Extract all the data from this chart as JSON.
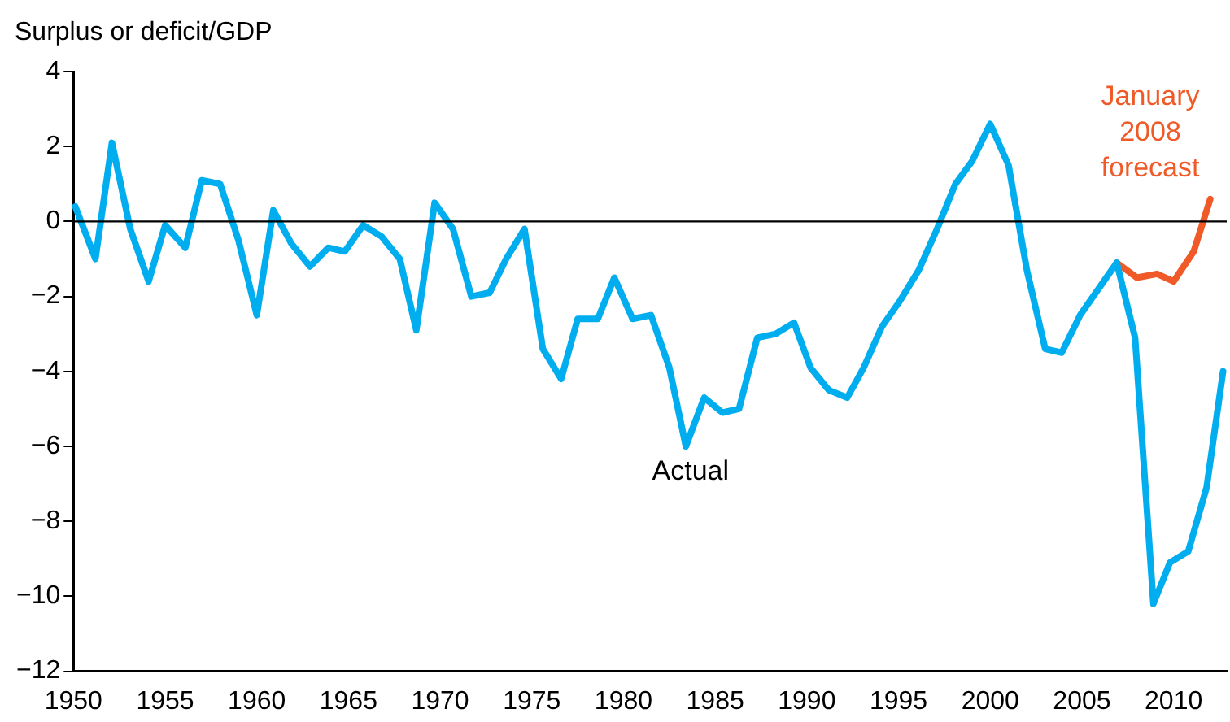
{
  "chart_data": {
    "type": "line",
    "ylabel": "Surplus or deficit/GDP",
    "xlim": [
      1950,
      2012.9
    ],
    "xticks": [
      1950,
      1955,
      1960,
      1965,
      1970,
      1975,
      1980,
      1985,
      1990,
      1995,
      2000,
      2005,
      2010
    ],
    "ylim": [
      -12,
      4
    ],
    "yticks": [
      -12,
      -10,
      -8,
      -6,
      -4,
      -2,
      0,
      2,
      4
    ],
    "grid": false,
    "legend": false,
    "marker": "none",
    "line_style": "solid",
    "ref_lines": [
      {
        "axis": "y",
        "value": 0,
        "color": "#000000"
      }
    ],
    "series": [
      {
        "name": "Actual",
        "color": "#00adef",
        "x": [
          1950.1,
          1951.2,
          1952.1,
          1953.1,
          1954.1,
          1955.0,
          1956.1,
          1957.0,
          1958.0,
          1959.0,
          1960.0,
          1960.9,
          1961.9,
          1962.9,
          1963.9,
          1964.8,
          1965.8,
          1966.8,
          1967.8,
          1968.7,
          1969.7,
          1970.7,
          1971.7,
          1972.7,
          1973.6,
          1974.6,
          1975.6,
          1976.6,
          1977.5,
          1978.6,
          1979.5,
          1980.5,
          1981.5,
          1982.5,
          1983.4,
          1984.4,
          1985.4,
          1986.3,
          1987.3,
          1988.3,
          1989.3,
          1990.2,
          1991.2,
          1992.2,
          1993.1,
          1994.1,
          1995.1,
          1996.1,
          1997.1,
          1998.1,
          1999.0,
          2000.0,
          2001.0,
          2002.0,
          2003.0,
          2003.9,
          2004.9,
          2005.9,
          2006.9,
          2007.9,
          2008.9,
          2009.8,
          2010.8,
          2011.8,
          2012.7
        ],
        "values": [
          0.4,
          -1.0,
          2.1,
          -0.2,
          -1.6,
          -0.1,
          -0.7,
          1.1,
          1.0,
          -0.5,
          -2.5,
          0.3,
          -0.6,
          -1.2,
          -0.7,
          -0.8,
          -0.1,
          -0.4,
          -1.0,
          -2.9,
          0.5,
          -0.2,
          -2.0,
          -1.9,
          -1.0,
          -0.2,
          -3.4,
          -4.2,
          -2.6,
          -2.6,
          -1.5,
          -2.6,
          -2.5,
          -3.9,
          -6.0,
          -4.7,
          -5.1,
          -5.0,
          -3.1,
          -3.0,
          -2.7,
          -3.9,
          -4.5,
          -4.7,
          -3.9,
          -2.8,
          -2.1,
          -1.3,
          -0.2,
          1.0,
          1.6,
          2.6,
          1.5,
          -1.3,
          -3.4,
          -3.5,
          -2.5,
          -1.8,
          -1.1,
          -3.1,
          -10.2,
          -9.1,
          -8.8,
          -7.1,
          -4.0
        ]
      },
      {
        "name": "January 2008 forecast",
        "color": "#f05a28",
        "x": [
          2006.9,
          2008.0,
          2009.1,
          2010.0,
          2011.1,
          2012.0
        ],
        "values": [
          -1.1,
          -1.5,
          -1.4,
          -1.6,
          -0.8,
          0.6
        ]
      }
    ]
  }
}
